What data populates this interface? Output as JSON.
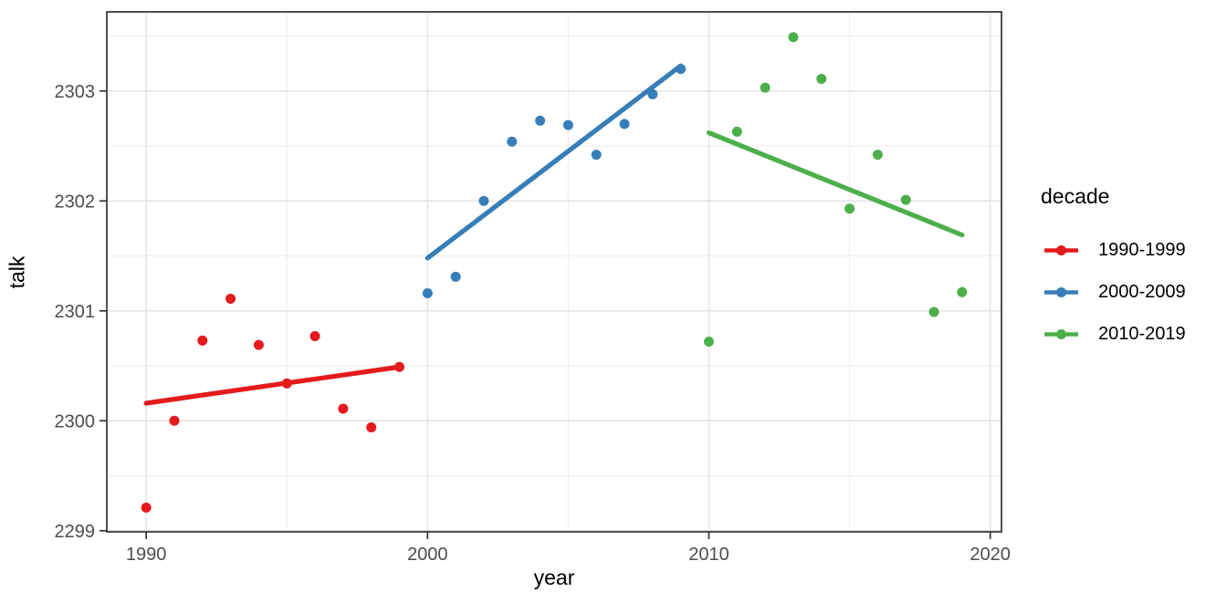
{
  "chart_data": {
    "type": "scatter",
    "title": "",
    "xlabel": "year",
    "ylabel": "talk",
    "legend_title": "decade",
    "legend_position": "right",
    "grid": true,
    "xlim": [
      1988.6,
      2020.4
    ],
    "ylim": [
      2298.99,
      2303.72
    ],
    "x_ticks": [
      1990,
      2000,
      2010,
      2020
    ],
    "y_ticks": [
      2299,
      2300,
      2301,
      2302,
      2303
    ],
    "x_minor_ticks": [
      1995,
      2005,
      2015
    ],
    "y_minor_ticks": [
      2299.5,
      2300.5,
      2301.5,
      2302.5,
      2303.5
    ],
    "series": [
      {
        "name": "1990-1999",
        "color": "#E41A1C",
        "x": [
          1990,
          1991,
          1992,
          1993,
          1994,
          1995,
          1996,
          1997,
          1998,
          1999
        ],
        "y": [
          2299.21,
          2300.0,
          2300.73,
          2301.11,
          2300.69,
          2300.34,
          2300.77,
          2300.11,
          2299.94,
          2300.49
        ],
        "trend_line": {
          "x": [
            1990,
            1999
          ],
          "y": [
            2300.16,
            2300.49
          ]
        }
      },
      {
        "name": "2000-2009",
        "color": "#377EB8",
        "x": [
          2000,
          2001,
          2002,
          2003,
          2004,
          2005,
          2006,
          2007,
          2008,
          2009
        ],
        "y": [
          2301.16,
          2301.31,
          2302.0,
          2302.54,
          2302.73,
          2302.69,
          2302.42,
          2302.7,
          2302.97,
          2303.2
        ],
        "trend_line": {
          "x": [
            2000,
            2009
          ],
          "y": [
            2301.48,
            2303.23
          ]
        }
      },
      {
        "name": "2010-2019",
        "color": "#4DAF4A",
        "x": [
          2010,
          2011,
          2012,
          2013,
          2014,
          2015,
          2016,
          2017,
          2018,
          2019
        ],
        "y": [
          2300.72,
          2302.63,
          2303.03,
          2303.49,
          2303.11,
          2301.93,
          2302.42,
          2302.01,
          2300.99,
          2301.17
        ],
        "trend_line": {
          "x": [
            2010,
            2019
          ],
          "y": [
            2302.62,
            2301.69
          ]
        }
      }
    ],
    "colors": {
      "tick_label": "#4D4D4D",
      "axis_title": "#000000",
      "panel_border": "#333333",
      "grid_major": "#E4E4E4",
      "grid_minor": "#F0F0F0",
      "panel_background": "#FFFFFF"
    }
  }
}
